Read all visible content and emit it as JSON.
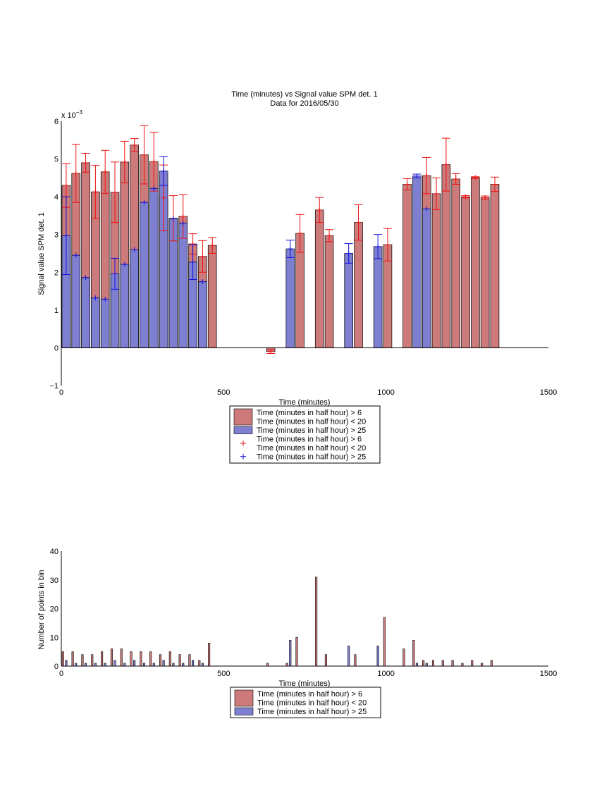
{
  "colors": {
    "red_bar": "#cc7a7a",
    "blue_bar": "#7f7fd1",
    "red_err": "#ee1111",
    "blue_err": "#1111dd"
  },
  "chart_data": [
    {
      "type": "bar",
      "title": "Time (minutes) vs Signal value SPM det. 1",
      "subtitle": "Data for 2016/05/30",
      "xlabel": "Time (minutes)",
      "ylabel": "Signal value SPM det. 1",
      "y_multiplier": "x 10",
      "y_exponent": "−3",
      "xlim": [
        0,
        1500
      ],
      "ylim": [
        -1,
        6
      ],
      "xticks": [
        "0",
        "500",
        "1000",
        "1500"
      ],
      "yticks": [
        "−1",
        "0",
        "1",
        "2",
        "3",
        "4",
        "5",
        "6"
      ],
      "legend_position": "bottom-center",
      "legend": [
        {
          "kind": "bar",
          "series": "red",
          "lines": [
            "Time (minutes in half hour) > 6",
            "Time (minutes in half hour) < 20"
          ]
        },
        {
          "kind": "bar",
          "series": "blue",
          "lines": [
            "Time (minutes in half hour) > 25"
          ]
        },
        {
          "kind": "marker",
          "series": "red",
          "lines": [
            "Time (minutes in half hour) > 6",
            "Time (minutes in half hour) < 20"
          ]
        },
        {
          "kind": "marker",
          "series": "blue",
          "lines": [
            "Time (minutes in half hour) > 25"
          ]
        }
      ],
      "series": [
        {
          "name": "Time (minutes in half hour) > 6 Time (minutes in half hour) < 20",
          "color": "red",
          "x": [
            15,
            45,
            75,
            105,
            135,
            165,
            195,
            225,
            255,
            285,
            315,
            345,
            375,
            405,
            435,
            465,
            645,
            735,
            795,
            825,
            915,
            1005,
            1065,
            1125,
            1155,
            1185,
            1215,
            1245,
            1275,
            1305,
            1335
          ],
          "y": [
            4.3,
            4.62,
            4.9,
            4.13,
            4.66,
            4.12,
            4.92,
            5.37,
            5.11,
            4.93,
            3.97,
            3.43,
            3.48,
            2.75,
            2.42,
            2.71,
            -0.1,
            3.03,
            3.65,
            2.97,
            3.32,
            2.73,
            4.33,
            4.56,
            4.08,
            4.85,
            4.47,
            4.0,
            4.51,
            3.98,
            4.33
          ],
          "err": [
            0.58,
            0.77,
            0.25,
            0.7,
            0.57,
            0.8,
            0.55,
            0.17,
            0.77,
            0.78,
            0.87,
            0.6,
            0.58,
            0.27,
            0.42,
            0.21,
            0.05,
            0.5,
            0.33,
            0.16,
            0.47,
            0.43,
            0.15,
            0.48,
            0.42,
            0.7,
            0.14,
            0.03,
            0.02,
            0.04,
            0.19
          ]
        },
        {
          "name": "Time (minutes in half hour) > 25",
          "color": "blue",
          "x": [
            15,
            45,
            75,
            105,
            135,
            165,
            195,
            225,
            255,
            285,
            315,
            345,
            375,
            405,
            435,
            705,
            885,
            975,
            1095,
            1125
          ],
          "y": [
            2.97,
            2.45,
            1.86,
            1.32,
            1.29,
            1.96,
            2.21,
            2.6,
            3.85,
            4.22,
            4.68,
            3.42,
            3.3,
            2.27,
            1.75,
            2.62,
            2.5,
            2.68,
            4.55,
            3.68
          ],
          "err": [
            1.03,
            0.0,
            0.0,
            0.0,
            0.0,
            0.41,
            0.0,
            0.0,
            0.0,
            0.0,
            0.38,
            0.0,
            0.0,
            0.46,
            0.0,
            0.23,
            0.26,
            0.32,
            0.05,
            0.0
          ]
        }
      ]
    },
    {
      "type": "bar",
      "xlabel": "Time (minutes)",
      "ylabel": "Number of points in bin",
      "xlim": [
        0,
        1500
      ],
      "ylim": [
        0,
        40
      ],
      "xticks": [
        "0",
        "500",
        "1000",
        "1500"
      ],
      "yticks": [
        "0",
        "10",
        "20",
        "30",
        "40"
      ],
      "legend_position": "bottom-center",
      "legend": [
        {
          "kind": "bar",
          "series": "red",
          "lines": [
            "Time (minutes in half hour) > 6",
            "Time (minutes in half hour) < 20"
          ]
        },
        {
          "kind": "bar",
          "series": "blue",
          "lines": [
            "Time (minutes in half hour) > 25"
          ]
        }
      ],
      "series": [
        {
          "name": "Time (minutes in half hour) > 6 Time (minutes in half hour) < 20",
          "color": "red",
          "x": [
            5,
            35,
            65,
            95,
            125,
            155,
            185,
            215,
            245,
            275,
            305,
            335,
            365,
            395,
            425,
            455,
            635,
            695,
            725,
            785,
            815,
            905,
            995,
            1055,
            1085,
            1115,
            1145,
            1175,
            1205,
            1235,
            1265,
            1295,
            1325
          ],
          "y": [
            5,
            5,
            4,
            4,
            5,
            6,
            6,
            5,
            5,
            5,
            4,
            5,
            4,
            4,
            2,
            8,
            1,
            1,
            10,
            31,
            4,
            4,
            17,
            6,
            9,
            2,
            2,
            2,
            2,
            1,
            2,
            1,
            2
          ]
        },
        {
          "name": "Time (minutes in half hour) > 25",
          "color": "blue",
          "x": [
            15,
            45,
            75,
            105,
            135,
            165,
            195,
            225,
            255,
            285,
            315,
            345,
            375,
            405,
            435,
            705,
            885,
            975,
            1095,
            1125
          ],
          "y": [
            2,
            1,
            1,
            1,
            1,
            2,
            1,
            2,
            1,
            1,
            2,
            1,
            1,
            2,
            1,
            9,
            7,
            7,
            1,
            1
          ]
        }
      ]
    }
  ]
}
